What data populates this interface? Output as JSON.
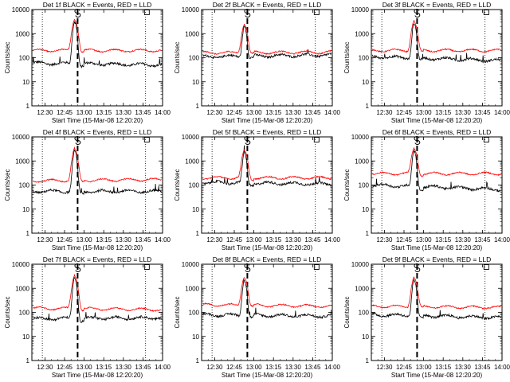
{
  "colors": {
    "events": "#000000",
    "lld": "#ff0000",
    "frame": "#000000"
  },
  "chart_data": [
    {
      "type": "line",
      "title": "Det 1f BLACK = Events, RED = LLD",
      "ylabel": "Counts/sec",
      "xlabel": "Start Time (15-Mar-08 12:20:20)",
      "yscale": "log",
      "ylim": [
        1,
        10000
      ],
      "xlim": [
        "12:20",
        "14:00"
      ],
      "x_ticks": [
        "12:30",
        "12:45",
        "13:00",
        "13:15",
        "13:30",
        "13:45",
        "14:00"
      ],
      "y_ticks": [
        "1",
        "10",
        "100",
        "1000",
        "10000"
      ],
      "dotted_lines": [
        "12:28",
        "13:47"
      ],
      "dashed_line": "12:55",
      "markers": [
        {
          "time": "12:55",
          "symbol": "S"
        },
        {
          "time": "13:48",
          "symbol": "box"
        }
      ],
      "series": [
        {
          "base": 60,
          "peak": 3500,
          "peak_time": "12:53",
          "end": 50
        },
        {
          "base": 200,
          "peak": 4000,
          "peak_time": "12:53",
          "end": 200
        }
      ]
    },
    {
      "type": "line",
      "title": "Det 2f BLACK = Events, RED = LLD",
      "ylabel": "Counts/sec",
      "xlabel": "Start Time (15-Mar-08 12:20:20)",
      "yscale": "log",
      "ylim": [
        1,
        10000
      ],
      "xlim": [
        "12:20",
        "14:00"
      ],
      "x_ticks": [
        "12:30",
        "12:45",
        "13:00",
        "13:15",
        "13:30",
        "13:45",
        "14:00"
      ],
      "y_ticks": [
        "1",
        "10",
        "100",
        "1000",
        "10000"
      ],
      "dotted_lines": [
        "12:28",
        "13:47"
      ],
      "dashed_line": "12:55",
      "markers": [
        {
          "time": "12:55",
          "symbol": "S"
        },
        {
          "time": "13:48",
          "symbol": "box"
        }
      ],
      "series": [
        {
          "base": 110,
          "peak": 2200,
          "peak_time": "12:53",
          "end": 130
        },
        {
          "base": 160,
          "peak": 2500,
          "peak_time": "12:53",
          "end": 170
        }
      ]
    },
    {
      "type": "line",
      "title": "Det 3f BLACK = Events, RED = LLD",
      "ylabel": "Counts/sec",
      "xlabel": "Start Time (15-Mar-08 12:20:20)",
      "yscale": "log",
      "ylim": [
        1,
        10000
      ],
      "xlim": [
        "12:20",
        "14:00"
      ],
      "x_ticks": [
        "12:30",
        "12:45",
        "13:00",
        "13:15",
        "13:30",
        "13:45",
        "14:00"
      ],
      "y_ticks": [
        "1",
        "10",
        "100",
        "1000",
        "10000"
      ],
      "dotted_lines": [
        "12:28",
        "13:47"
      ],
      "dashed_line": "12:55",
      "markers": [
        {
          "time": "12:55",
          "symbol": "S"
        },
        {
          "time": "13:48",
          "symbol": "box"
        }
      ],
      "series": [
        {
          "base": 110,
          "peak": 3000,
          "peak_time": "12:53",
          "end": 75
        },
        {
          "base": 200,
          "peak": 3500,
          "peak_time": "12:53",
          "end": 200
        }
      ]
    },
    {
      "type": "line",
      "title": "Det 4f BLACK = Events, RED = LLD",
      "ylabel": "Counts/sec",
      "xlabel": "Start Time (15-Mar-08 12:20:20)",
      "yscale": "log",
      "ylim": [
        1,
        10000
      ],
      "xlim": [
        "12:20",
        "14:00"
      ],
      "x_ticks": [
        "12:30",
        "12:45",
        "13:00",
        "13:15",
        "13:30",
        "13:45",
        "14:00"
      ],
      "y_ticks": [
        "1",
        "10",
        "100",
        "1000",
        "10000"
      ],
      "dotted_lines": [
        "12:28",
        "13:47"
      ],
      "dashed_line": "12:55",
      "markers": [
        {
          "time": "12:55",
          "symbol": "S"
        },
        {
          "time": "13:48",
          "symbol": "box"
        }
      ],
      "series": [
        {
          "base": 55,
          "peak": 3000,
          "peak_time": "12:53",
          "end": 55
        },
        {
          "base": 150,
          "peak": 3500,
          "peak_time": "12:53",
          "end": 170
        }
      ]
    },
    {
      "type": "line",
      "title": "Det 5f BLACK = Events, RED = LLD",
      "ylabel": "Counts/sec",
      "xlabel": "Start Time (15-Mar-08 12:20:20)",
      "yscale": "log",
      "ylim": [
        1,
        10000
      ],
      "xlim": [
        "12:20",
        "14:00"
      ],
      "x_ticks": [
        "12:30",
        "12:45",
        "13:00",
        "13:15",
        "13:30",
        "13:45",
        "14:00"
      ],
      "y_ticks": [
        "1",
        "10",
        "100",
        "1000",
        "10000"
      ],
      "dotted_lines": [
        "12:28",
        "13:47"
      ],
      "dashed_line": "12:55",
      "markers": [
        {
          "time": "12:55",
          "symbol": "S"
        },
        {
          "time": "13:48",
          "symbol": "box"
        }
      ],
      "series": [
        {
          "base": 130,
          "peak": 2500,
          "peak_time": "12:53",
          "end": 110
        },
        {
          "base": 200,
          "peak": 3000,
          "peak_time": "12:53",
          "end": 200
        }
      ]
    },
    {
      "type": "line",
      "title": "Det 6f BLACK = Events, RED = LLD",
      "ylabel": "Counts/sec",
      "xlabel": "Start Time (15-Mar-08 12:20:20)",
      "yscale": "log",
      "ylim": [
        1,
        10000
      ],
      "xlim": [
        "12:20",
        "14:00"
      ],
      "x_ticks": [
        "12:30",
        "12:45",
        "13:00",
        "13:15",
        "13:30",
        "13:45",
        "14:00"
      ],
      "y_ticks": [
        "1",
        "10",
        "100",
        "1000",
        "10000"
      ],
      "dotted_lines": [
        "12:28",
        "13:47"
      ],
      "dashed_line": "12:55",
      "markers": [
        {
          "time": "12:55",
          "symbol": "S"
        },
        {
          "time": "13:48",
          "symbol": "box"
        }
      ],
      "series": [
        {
          "base": 100,
          "peak": 3000,
          "peak_time": "12:53",
          "end": 65
        },
        {
          "base": 300,
          "peak": 3500,
          "peak_time": "12:53",
          "end": 300
        }
      ]
    },
    {
      "type": "line",
      "title": "Det 7f BLACK = Events, RED = LLD",
      "ylabel": "Counts/sec",
      "xlabel": "Start Time (15-Mar-08 12:20:20)",
      "yscale": "log",
      "ylim": [
        1,
        10000
      ],
      "xlim": [
        "12:20",
        "14:00"
      ],
      "x_ticks": [
        "12:30",
        "12:45",
        "13:00",
        "13:15",
        "13:30",
        "13:45",
        "14:00"
      ],
      "y_ticks": [
        "1",
        "10",
        "100",
        "1000",
        "10000"
      ],
      "dotted_lines": [
        "12:28",
        "13:47"
      ],
      "dashed_line": "12:55",
      "markers": [
        {
          "time": "12:55",
          "symbol": "S"
        },
        {
          "time": "13:48",
          "symbol": "box"
        }
      ],
      "series": [
        {
          "base": 55,
          "peak": 3000,
          "peak_time": "12:53",
          "end": 60
        },
        {
          "base": 150,
          "peak": 3500,
          "peak_time": "12:53",
          "end": 130
        }
      ]
    },
    {
      "type": "line",
      "title": "Det 8f BLACK = Events, RED = LLD",
      "ylabel": "Counts/sec",
      "xlabel": "Start Time (15-Mar-08 12:20:20)",
      "yscale": "log",
      "ylim": [
        1,
        10000
      ],
      "xlim": [
        "12:20",
        "14:00"
      ],
      "x_ticks": [
        "12:30",
        "12:45",
        "13:00",
        "13:15",
        "13:30",
        "13:45",
        "14:00"
      ],
      "y_ticks": [
        "1",
        "10",
        "100",
        "1000",
        "10000"
      ],
      "dotted_lines": [
        "12:28",
        "13:47"
      ],
      "dashed_line": "12:55",
      "markers": [
        {
          "time": "12:55",
          "symbol": "S"
        },
        {
          "time": "13:48",
          "symbol": "box"
        }
      ],
      "series": [
        {
          "base": 80,
          "peak": 2500,
          "peak_time": "12:53",
          "end": 70
        },
        {
          "base": 210,
          "peak": 3000,
          "peak_time": "12:53",
          "end": 180
        }
      ]
    },
    {
      "type": "line",
      "title": "Det 9f BLACK = Events, RED = LLD",
      "ylabel": "Counts/sec",
      "xlabel": "Start Time (15-Mar-08 12:20:20)",
      "yscale": "log",
      "ylim": [
        1,
        10000
      ],
      "xlim": [
        "12:20",
        "14:00"
      ],
      "x_ticks": [
        "12:30",
        "12:45",
        "13:00",
        "13:15",
        "13:30",
        "13:45",
        "14:00"
      ],
      "y_ticks": [
        "1",
        "10",
        "100",
        "1000",
        "10000"
      ],
      "dotted_lines": [
        "12:28",
        "13:47"
      ],
      "dashed_line": "12:55",
      "markers": [
        {
          "time": "12:55",
          "symbol": "S"
        },
        {
          "time": "13:48",
          "symbol": "box"
        }
      ],
      "series": [
        {
          "base": 80,
          "peak": 2500,
          "peak_time": "12:53",
          "end": 60
        },
        {
          "base": 180,
          "peak": 3000,
          "peak_time": "12:53",
          "end": 160
        }
      ]
    }
  ]
}
